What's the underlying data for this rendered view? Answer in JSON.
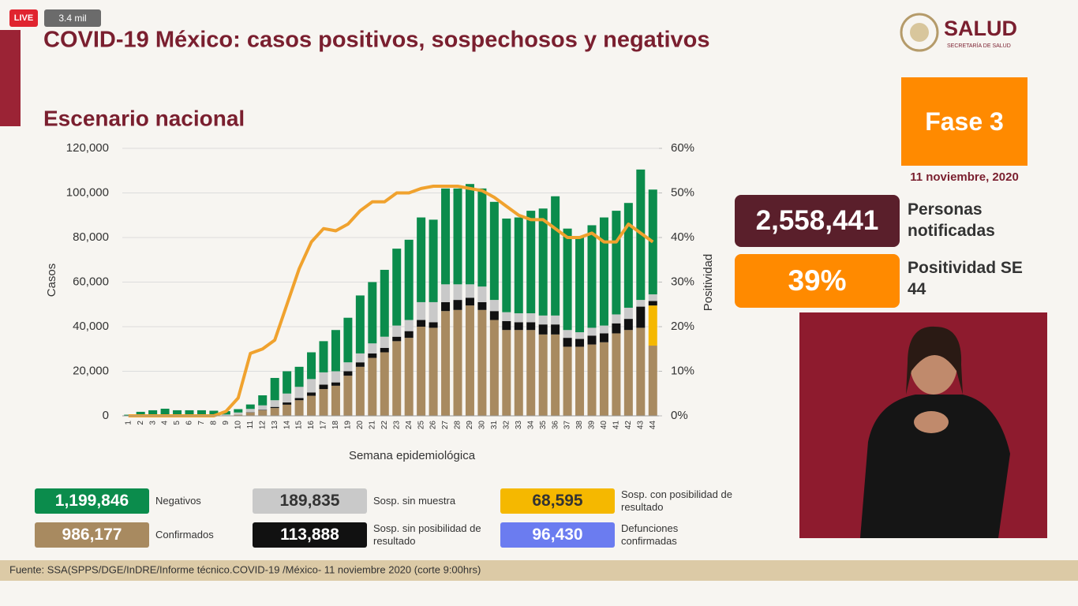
{
  "live": {
    "badge": "LIVE",
    "viewers": "3.4 mil"
  },
  "header": {
    "title": "COVID-19 México: casos positivos, sospechosos y negativos",
    "logo": "SALUD",
    "logo_sub": "SECRETARÍA DE SALUD"
  },
  "phase": "Fase 3",
  "date": "11 noviembre, 2020",
  "notified": {
    "value": "2,558,441",
    "label": "Personas notificadas"
  },
  "positivity": {
    "value": "39%",
    "label": "Positividad SE 44"
  },
  "deaths": {
    "label": "Defunciones confirmadas",
    "total": "96,430",
    "color": "#6b7cf0"
  },
  "source": "Fuente: SSA(SPPS/DGE/InDRE/Informe técnico.COVID-19 /México- 11 noviembre 2020 (corte 9:00hrs)",
  "chart_data": {
    "type": "bar",
    "title": "Escenario nacional",
    "xlabel": "Semana epidemiológica",
    "ylabel": "Casos",
    "y2label": "Positividad",
    "categories": [
      1,
      2,
      3,
      4,
      5,
      6,
      7,
      8,
      9,
      10,
      11,
      12,
      13,
      14,
      15,
      16,
      17,
      18,
      19,
      20,
      21,
      22,
      23,
      24,
      25,
      26,
      27,
      28,
      29,
      30,
      31,
      32,
      33,
      34,
      35,
      36,
      37,
      38,
      39,
      40,
      41,
      42,
      43,
      44
    ],
    "ylim": [
      0,
      120000
    ],
    "yticks": [
      0,
      {
        "value": 20000,
        "label": "20,000"
      },
      {
        "value": 40000,
        "label": "40,000"
      },
      {
        "value": 60000,
        "label": "60,000"
      },
      {
        "value": 80000,
        "label": "80,000"
      },
      {
        "value": 100000,
        "label": "100,000"
      },
      {
        "value": 120000,
        "label": "120,000"
      }
    ],
    "y2lim": [
      0,
      60
    ],
    "y2ticks": [
      {
        "value": 0,
        "label": "0%"
      },
      {
        "value": 10,
        "label": "10%"
      },
      {
        "value": 20,
        "label": "20%"
      },
      {
        "value": 30,
        "label": "30%"
      },
      {
        "value": 40,
        "label": "40%"
      },
      {
        "value": 50,
        "label": "50%"
      },
      {
        "value": 60,
        "label": "60%"
      }
    ],
    "grid": true,
    "series": [
      {
        "name": "Confirmados",
        "color": "#a88a60",
        "total": "986,177",
        "values": [
          0,
          0,
          0,
          0,
          0,
          0,
          0,
          0,
          100,
          500,
          1500,
          2500,
          3500,
          5000,
          7000,
          9000,
          12000,
          13500,
          18000,
          22000,
          26000,
          28500,
          33500,
          35000,
          40000,
          39500,
          47000,
          47500,
          49500,
          47500,
          43000,
          38500,
          38500,
          38500,
          36500,
          36500,
          31000,
          31000,
          32000,
          33000,
          37000,
          38500,
          39500,
          31500
        ]
      },
      {
        "name": "Sosp. con posibilidad de resultado",
        "color": "#f5b800",
        "total": "68,595",
        "values": [
          0,
          0,
          0,
          0,
          0,
          0,
          0,
          0,
          0,
          0,
          0,
          0,
          0,
          0,
          0,
          0,
          0,
          0,
          0,
          0,
          0,
          0,
          0,
          0,
          0,
          0,
          0,
          0,
          0,
          0,
          0,
          0,
          0,
          0,
          0,
          0,
          0,
          0,
          0,
          0,
          0,
          0,
          0,
          18000
        ]
      },
      {
        "name": "Sosp. sin posibilidad de resultado",
        "color": "#111111",
        "total": "113,888",
        "values": [
          0,
          0,
          0,
          0,
          0,
          0,
          0,
          0,
          0,
          0,
          100,
          200,
          500,
          1000,
          1000,
          1500,
          2000,
          1500,
          2000,
          2000,
          2000,
          2000,
          2000,
          3000,
          3000,
          2500,
          4000,
          4500,
          3500,
          3500,
          4000,
          4000,
          3500,
          3500,
          4500,
          4500,
          4000,
          3500,
          4000,
          4000,
          4500,
          5000,
          9500,
          2000
        ]
      },
      {
        "name": "Sosp. sin muestra",
        "color": "#c9c9c9",
        "total": "189,835",
        "values": [
          0,
          300,
          300,
          400,
          300,
          300,
          300,
          300,
          500,
          1000,
          1500,
          2000,
          3000,
          4000,
          5000,
          6000,
          5500,
          5000,
          4000,
          4000,
          4500,
          5000,
          5000,
          5000,
          8000,
          9000,
          8000,
          7000,
          6000,
          7000,
          5000,
          4000,
          4000,
          4000,
          4000,
          4000,
          3500,
          3000,
          3500,
          3500,
          4000,
          5000,
          3000,
          3000
        ]
      },
      {
        "name": "Negativos",
        "color": "#0b8c4c",
        "total": "1,199,846",
        "values": [
          500,
          1500,
          2200,
          2800,
          2200,
          2200,
          2200,
          2000,
          1500,
          1500,
          2000,
          4500,
          10000,
          10000,
          9000,
          12000,
          14000,
          18500,
          20000,
          26000,
          27500,
          30000,
          34500,
          36000,
          38000,
          37000,
          43000,
          43000,
          45000,
          44000,
          44000,
          42000,
          43000,
          46000,
          48000,
          53500,
          45500,
          43000,
          46000,
          48500,
          46500,
          47000,
          58500,
          47000
        ]
      },
      {
        "type": "line",
        "axis": "y2",
        "color": "#f0a22e",
        "values": [
          0,
          0,
          0,
          0,
          0,
          0,
          0,
          0,
          1,
          4,
          14,
          15,
          17,
          25,
          33,
          39,
          42,
          41.5,
          43,
          46,
          48,
          48,
          50,
          50,
          51,
          51.5,
          51.5,
          51.5,
          51,
          50.5,
          49,
          47,
          45,
          44,
          44,
          42,
          40,
          40,
          41,
          39,
          39,
          43,
          41,
          39
        ]
      }
    ]
  }
}
